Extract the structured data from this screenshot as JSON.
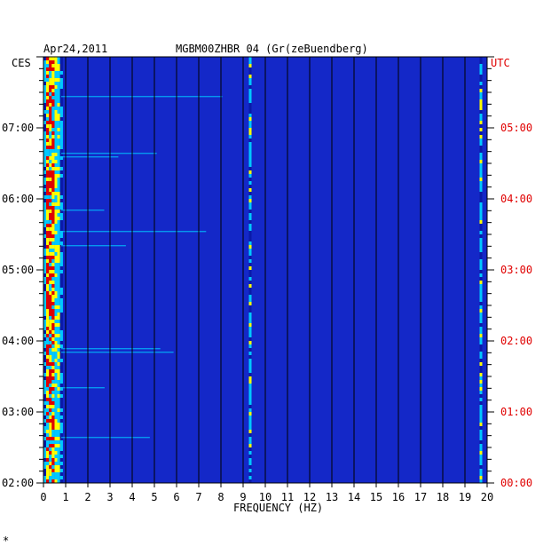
{
  "chart_data": {
    "type": "heatmap",
    "date": "Apr24,2011",
    "station": "MGBM00ZHBR 04 (Gr(zeBuendberg)",
    "left_timezone": "CES",
    "right_timezone": "UTC",
    "xlabel": "FREQUENCY (HZ)",
    "xlim": [
      0,
      20
    ],
    "x_ticks": [
      "0",
      "1",
      "2",
      "3",
      "4",
      "5",
      "6",
      "7",
      "8",
      "9",
      "10",
      "11",
      "12",
      "13",
      "14",
      "15",
      "16",
      "17",
      "18",
      "19",
      "20"
    ],
    "left_ticks": [
      "07:00",
      "06:00",
      "05:00",
      "04:00",
      "03:00",
      "02:00"
    ],
    "right_ticks": [
      "05:00",
      "04:00",
      "03:00",
      "02:00",
      "01:00",
      "00:00"
    ],
    "time_range_utc_hours": [
      0,
      6
    ],
    "colors": {
      "background": "#1428c8",
      "low": "#0a1aa8",
      "mid": "#00c8ff",
      "high": "#ffff00",
      "peak": "#e00000",
      "utc_text": "#e00000",
      "grid": "#000000"
    },
    "strong_features_hz": [
      0.4,
      9.3,
      19.7
    ],
    "footnote": "*"
  }
}
